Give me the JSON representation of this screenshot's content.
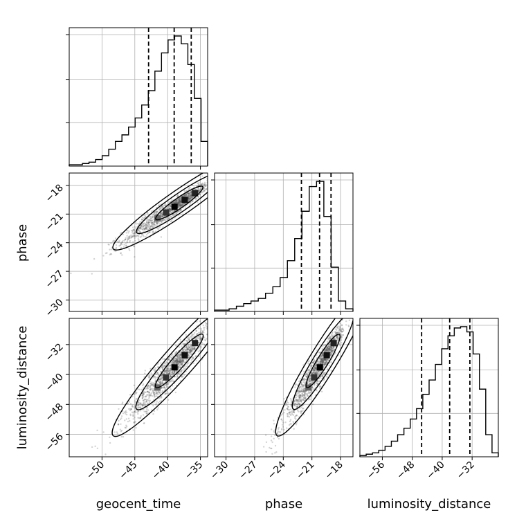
{
  "chart_data": {
    "type": "corner",
    "parameters": [
      "geocent_time",
      "phase",
      "luminosity_distance"
    ],
    "axis_labels": {
      "x": [
        "geocent_time",
        "phase",
        "luminosity_distance"
      ],
      "y": [
        "phase",
        "luminosity_distance"
      ]
    },
    "ranges": {
      "geocent_time": [
        -55.0,
        -33.9
      ],
      "phase": [
        -31.2,
        -16.7
      ],
      "luminosity_distance": [
        -62.0,
        -25.0
      ]
    },
    "ticks": {
      "geocent_time": [
        -50,
        -45,
        -40,
        -35
      ],
      "phase": [
        -30,
        -27,
        -24,
        -21,
        -18
      ],
      "luminosity_distance": [
        -56,
        -48,
        -40,
        -32
      ]
    },
    "quantiles": {
      "geocent_time": [
        -42.9,
        -39.0,
        -36.4
      ],
      "phase": [
        -22.1,
        -20.2,
        -19.0
      ],
      "luminosity_distance": [
        -45.5,
        -38.0,
        -32.6
      ]
    },
    "histograms": {
      "geocent_time": [
        0.01,
        0.01,
        0.02,
        0.03,
        0.05,
        0.08,
        0.13,
        0.19,
        0.24,
        0.3,
        0.37,
        0.47,
        0.58,
        0.73,
        0.87,
        0.97,
        1.0,
        0.94,
        0.78,
        0.52,
        0.19
      ],
      "phase": [
        0.01,
        0.01,
        0.02,
        0.04,
        0.06,
        0.08,
        0.1,
        0.14,
        0.19,
        0.26,
        0.39,
        0.56,
        0.77,
        0.96,
        1.0,
        0.73,
        0.34,
        0.08,
        0.02
      ],
      "luminosity_distance": [
        0.01,
        0.02,
        0.03,
        0.05,
        0.08,
        0.12,
        0.17,
        0.22,
        0.29,
        0.37,
        0.48,
        0.59,
        0.71,
        0.83,
        0.93,
        0.99,
        1.0,
        0.96,
        0.79,
        0.52,
        0.17,
        0.03
      ]
    },
    "correlations": {
      "phase_vs_geocent_time": 0.95,
      "luminosity_distance_vs_geocent_time": 0.94,
      "luminosity_distance_vs_phase": 0.95
    },
    "grid": true,
    "sample_color": "#000000",
    "line_color": "#000000"
  }
}
